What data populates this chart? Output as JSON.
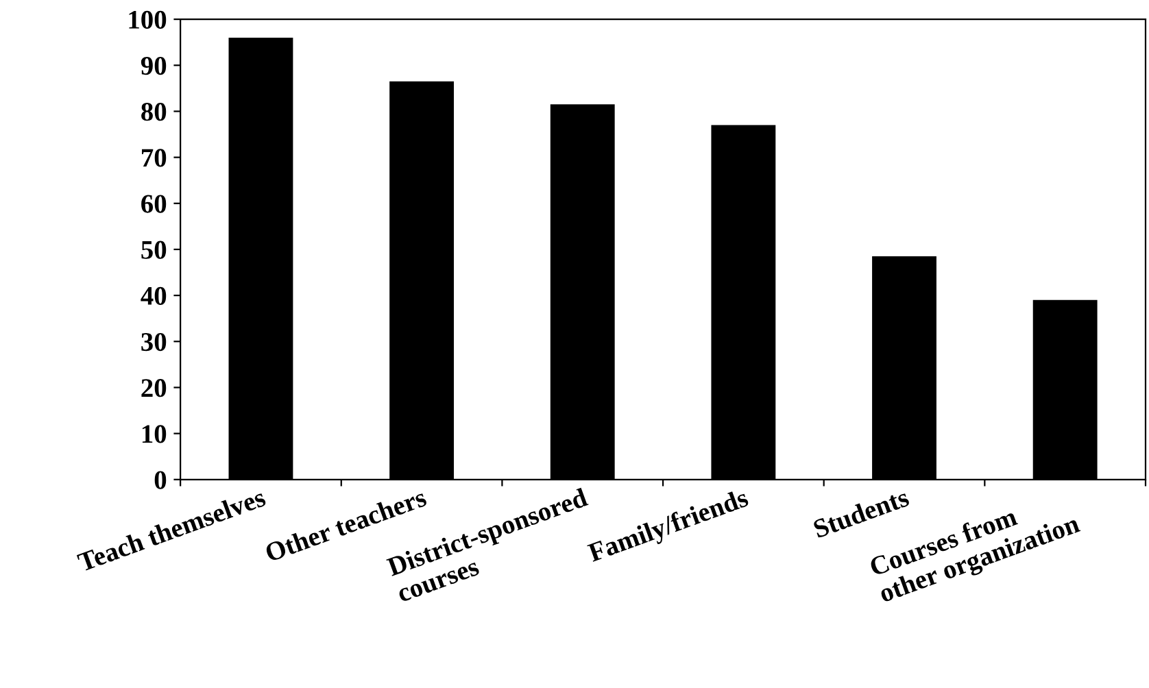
{
  "chart_data": {
    "type": "bar",
    "categories": [
      "Teach themselves",
      "Other teachers",
      "District-sponsored\ncourses",
      "Family/friends",
      "Students",
      "Courses from\nother organization"
    ],
    "values": [
      96,
      86.5,
      81.5,
      77,
      48.5,
      39
    ],
    "color": "#000000",
    "ylim": [
      0,
      100
    ],
    "yticks": [
      0,
      10,
      20,
      30,
      40,
      50,
      60,
      70,
      80,
      90,
      100
    ],
    "grid": false,
    "legend": false
  }
}
